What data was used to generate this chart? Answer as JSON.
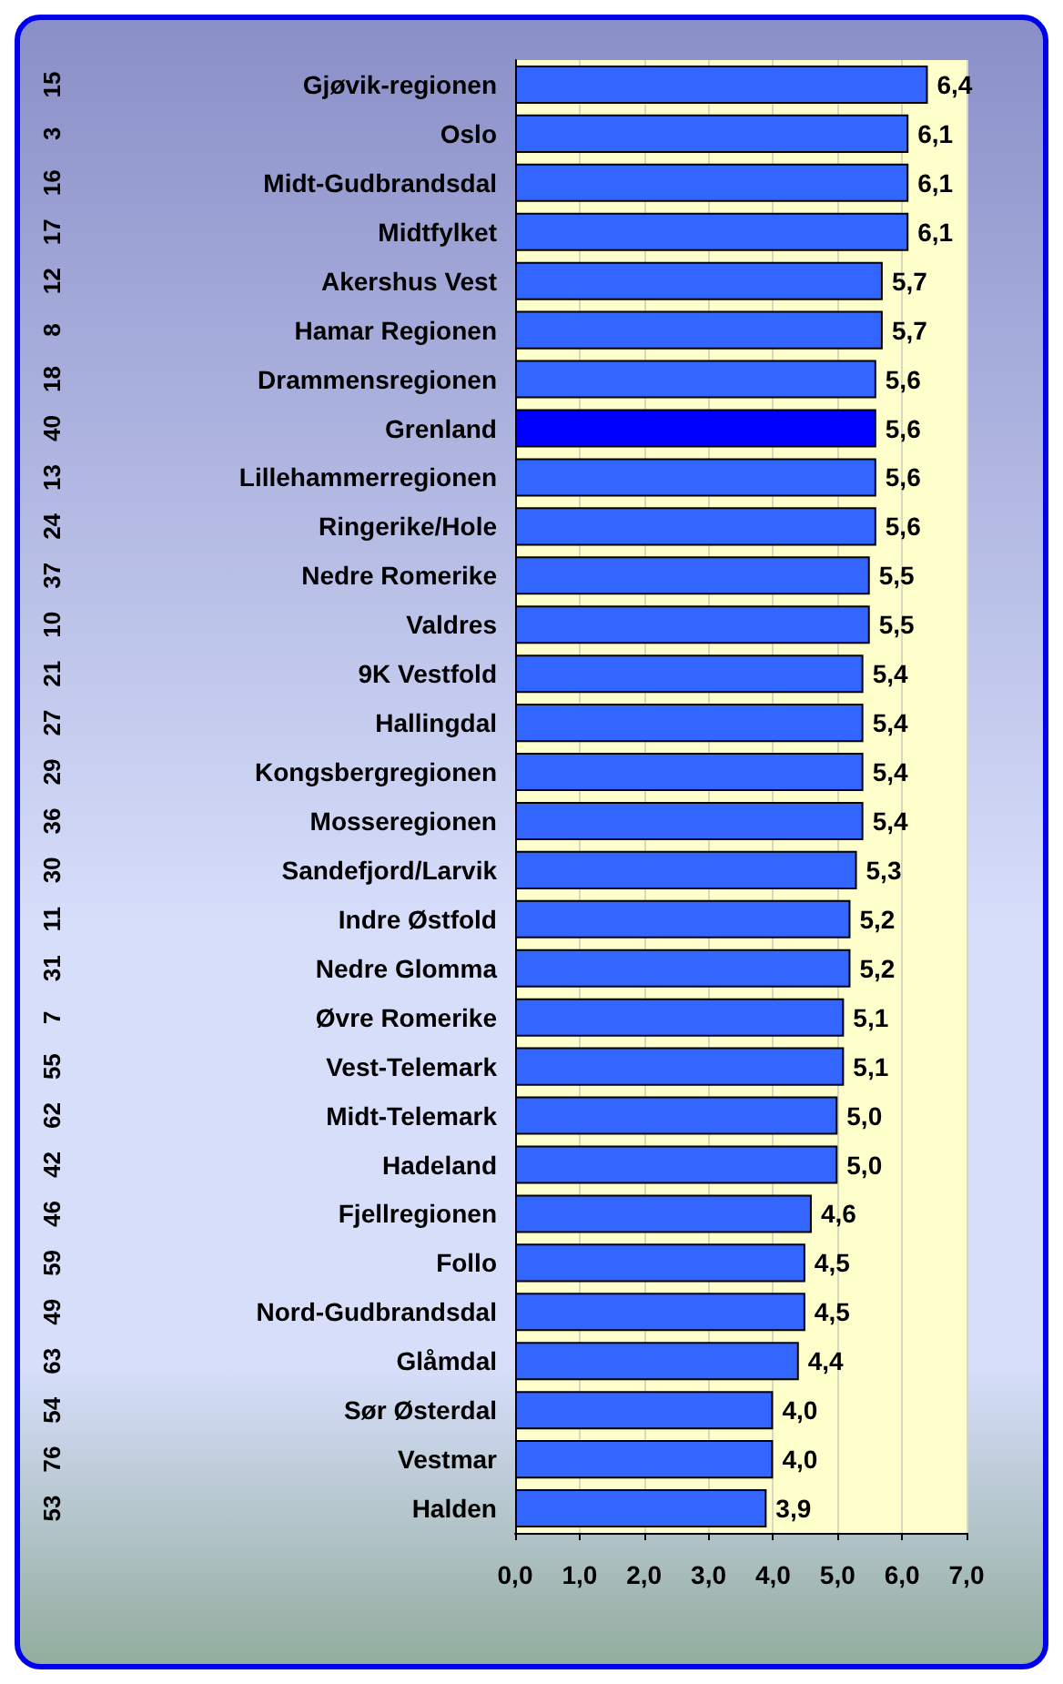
{
  "chart_data": {
    "type": "bar",
    "orientation": "horizontal",
    "categories": [
      "Gjøvik-regionen",
      "Oslo",
      "Midt-Gudbrandsdal",
      "Midtfylket",
      "Akershus Vest",
      "Hamar Regionen",
      "Drammensregionen",
      "Grenland",
      "Lillehammerregionen",
      "Ringerike/Hole",
      "Nedre Romerike",
      "Valdres",
      "9K Vestfold",
      "Hallingdal",
      "Kongsbergregionen",
      "Mosseregionen",
      "Sandefjord/Larvik",
      "Indre Østfold",
      "Nedre Glomma",
      "Øvre Romerike",
      "Vest-Telemark",
      "Midt-Telemark",
      "Hadeland",
      "Fjellregionen",
      "Follo",
      "Nord-Gudbrandsdal",
      "Glåmdal",
      "Sør Østerdal",
      "Vestmar",
      "Halden"
    ],
    "values": [
      6.4,
      6.1,
      6.1,
      6.1,
      5.7,
      5.7,
      5.6,
      5.6,
      5.6,
      5.6,
      5.5,
      5.5,
      5.4,
      5.4,
      5.4,
      5.4,
      5.3,
      5.2,
      5.2,
      5.1,
      5.1,
      5.0,
      5.0,
      4.6,
      4.5,
      4.5,
      4.4,
      4.0,
      4.0,
      3.9
    ],
    "colors": [
      "#3366ff",
      "#3366ff",
      "#3366ff",
      "#3366ff",
      "#3366ff",
      "#3366ff",
      "#3366ff",
      "#0000ff",
      "#3366ff",
      "#3366ff",
      "#3366ff",
      "#3366ff",
      "#3366ff",
      "#3366ff",
      "#3366ff",
      "#3366ff",
      "#3366ff",
      "#3366ff",
      "#3366ff",
      "#3366ff",
      "#3366ff",
      "#3366ff",
      "#3366ff",
      "#3366ff",
      "#3366ff",
      "#3366ff",
      "#3366ff",
      "#3366ff",
      "#3366ff",
      "#3366ff"
    ],
    "xlim": [
      0,
      7
    ],
    "xticks": [
      {
        "value": 0,
        "label": "0,0"
      },
      {
        "value": 1,
        "label": "1,0"
      },
      {
        "value": 2,
        "label": "2,0"
      },
      {
        "value": 3,
        "label": "3,0"
      },
      {
        "value": 4,
        "label": "4,0"
      },
      {
        "value": 5,
        "label": "5,0"
      },
      {
        "value": 6,
        "label": "6,0"
      },
      {
        "value": 7,
        "label": "7,0"
      }
    ],
    "annotations": [
      "15",
      "3",
      "16",
      "17",
      "12",
      "8",
      "18",
      "40",
      "13",
      "24",
      "37",
      "10",
      "21",
      "27",
      "29",
      "36",
      "30",
      "11",
      "31",
      "7",
      "55",
      "62",
      "42",
      "46",
      "59",
      "49",
      "63",
      "54",
      "76",
      "53"
    ],
    "value_labels": [
      "6,4",
      "6,1",
      "6,1",
      "6,1",
      "5,7",
      "5,7",
      "5,6",
      "5,6",
      "5,6",
      "5,6",
      "5,5",
      "5,5",
      "5,4",
      "5,4",
      "5,4",
      "5,4",
      "5,3",
      "5,2",
      "5,2",
      "5,1",
      "5,1",
      "5,0",
      "5,0",
      "4,6",
      "4,5",
      "4,5",
      "4,4",
      "4,0",
      "4,0",
      "3,9"
    ],
    "grid": "x"
  }
}
